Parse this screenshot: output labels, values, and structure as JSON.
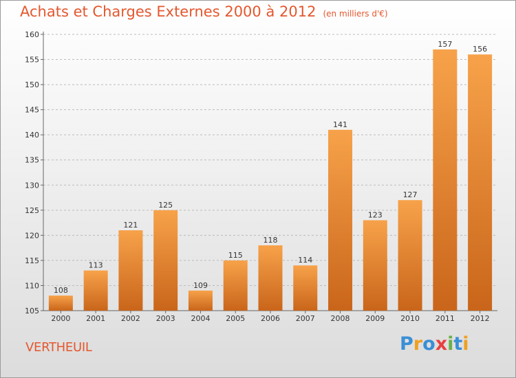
{
  "header": {
    "title": "Achats et Charges Externes 2000 à 2012",
    "subtitle": "(en milliers d'€)"
  },
  "footer": {
    "commune": "VERTHEUIL",
    "brand_letters": [
      {
        "ch": "P",
        "color": "#3a8fd6"
      },
      {
        "ch": "r",
        "color": "#f0a020"
      },
      {
        "ch": "o",
        "color": "#3a8fd6"
      },
      {
        "ch": "x",
        "color": "#e84040"
      },
      {
        "ch": "i",
        "color": "#6ab04c"
      },
      {
        "ch": "t",
        "color": "#3a8fd6"
      },
      {
        "ch": "i",
        "color": "#f0a020"
      }
    ]
  },
  "colors": {
    "title": "#e4572e",
    "bar_light": "#f7a24a",
    "bar_dark": "#c9651a",
    "grid": "#bbbbbb"
  },
  "chart_data": {
    "type": "bar",
    "title": "Achats et Charges Externes 2000 à 2012",
    "subtitle": "(en milliers d'€)",
    "xlabel": "",
    "ylabel": "",
    "categories": [
      "2000",
      "2001",
      "2002",
      "2003",
      "2004",
      "2005",
      "2006",
      "2007",
      "2008",
      "2009",
      "2010",
      "2011",
      "2012"
    ],
    "values": [
      108,
      113,
      121,
      125,
      109,
      115,
      118,
      114,
      141,
      123,
      127,
      157,
      156
    ],
    "ylim": [
      105,
      160
    ],
    "yticks": [
      105,
      110,
      115,
      120,
      125,
      130,
      135,
      140,
      145,
      150,
      155,
      160
    ],
    "grid": true,
    "legend": "none"
  }
}
